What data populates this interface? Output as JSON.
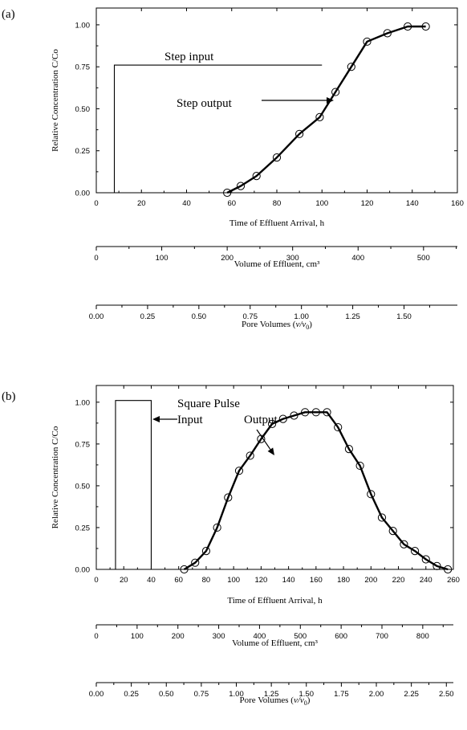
{
  "chart_data": [
    {
      "panel_label": "(a)",
      "type": "line",
      "ylabel": "Relative Concentration C/Co",
      "ylim": [
        0,
        1.1
      ],
      "yticks": [
        "0.00",
        "0.25",
        "0.50",
        "0.75",
        "1.00"
      ],
      "grid": false,
      "x_axes": [
        {
          "title": "Time of Effluent Arrival, h",
          "range": [
            0,
            160
          ],
          "ticks": [
            "0",
            "20",
            "40",
            "60",
            "80",
            "100",
            "120",
            "140",
            "160"
          ]
        },
        {
          "title": "Volume of Effluent, cm³",
          "range": [
            0,
            551.7
          ],
          "ticks": [
            "0",
            "100",
            "200",
            "300",
            "400",
            "500"
          ]
        },
        {
          "title_html": "Pore Volumes (v/v0)",
          "title_parts": [
            "Pore Volumes (",
            "v/v",
            "0",
            ")"
          ],
          "range": [
            0,
            1.76
          ],
          "ticks": [
            "0.00",
            "0.25",
            "0.50",
            "0.75",
            "1.00",
            "1.25",
            "1.50"
          ]
        }
      ],
      "series": [
        {
          "name": "Step output",
          "x": [
            58,
            64,
            71,
            80,
            90,
            99,
            106,
            113,
            120,
            129,
            138,
            146
          ],
          "y": [
            0.0,
            0.04,
            0.1,
            0.21,
            0.35,
            0.45,
            0.6,
            0.75,
            0.9,
            0.95,
            0.99,
            0.99
          ]
        },
        {
          "name": "Step input",
          "x": [
            8,
            8,
            100
          ],
          "y": [
            0,
            0.76,
            0.76
          ]
        }
      ],
      "annotations": [
        "Step input",
        "Step output"
      ]
    },
    {
      "panel_label": "(b)",
      "type": "line",
      "ylabel": "Relative Concentration C/Co",
      "ylim": [
        0,
        1.1
      ],
      "yticks": [
        "0.00",
        "0.25",
        "0.50",
        "0.75",
        "1.00"
      ],
      "grid": false,
      "x_axes": [
        {
          "title": "Time of Effluent Arrival, h",
          "range": [
            0,
            260
          ],
          "ticks": [
            "0",
            "20",
            "40",
            "60",
            "80",
            "100",
            "120",
            "140",
            "160",
            "180",
            "200",
            "220",
            "240",
            "260"
          ]
        },
        {
          "title": "Volume of Effluent, cm³",
          "range": [
            0,
            875
          ],
          "ticks": [
            "0",
            "100",
            "200",
            "300",
            "400",
            "500",
            "600",
            "700",
            "800"
          ]
        },
        {
          "title_parts": [
            "Pore Volumes (",
            "v/v",
            "0",
            ")"
          ],
          "range": [
            0,
            2.55
          ],
          "ticks": [
            "0.00",
            "0.25",
            "0.50",
            "0.75",
            "1.00",
            "1.25",
            "1.50",
            "1.75",
            "2.00",
            "2.25",
            "2.50"
          ]
        }
      ],
      "series": [
        {
          "name": "Output",
          "x": [
            64,
            72,
            80,
            88,
            96,
            104,
            112,
            120,
            128,
            136,
            144,
            152,
            160,
            168,
            176,
            184,
            192,
            200,
            208,
            216,
            224,
            232,
            240,
            248,
            256
          ],
          "y": [
            0.0,
            0.04,
            0.11,
            0.25,
            0.43,
            0.59,
            0.68,
            0.78,
            0.87,
            0.9,
            0.92,
            0.94,
            0.94,
            0.94,
            0.85,
            0.72,
            0.62,
            0.45,
            0.31,
            0.23,
            0.15,
            0.11,
            0.06,
            0.02,
            0.0
          ]
        },
        {
          "name": "Square Pulse Input",
          "x": [
            14,
            14,
            40,
            40
          ],
          "y": [
            0,
            1.01,
            1.01,
            0
          ]
        }
      ],
      "annotations": [
        "Square Pulse",
        "Input",
        "Output"
      ]
    }
  ]
}
